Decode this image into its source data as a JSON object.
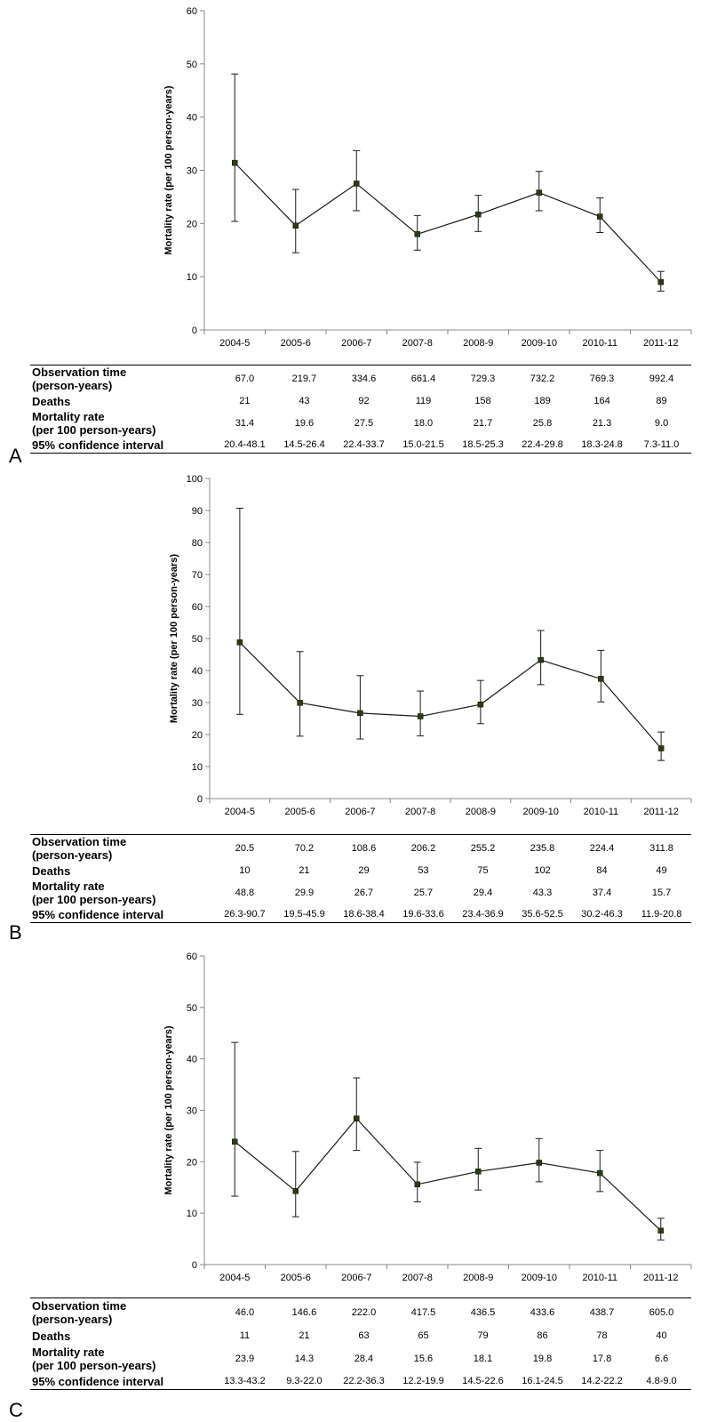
{
  "chart_data": [
    {
      "type": "line",
      "panel_letter": "A",
      "categories": [
        "2004-5",
        "2005-6",
        "2006-7",
        "2007-8",
        "2008-9",
        "2009-10",
        "2010-11",
        "2011-12"
      ],
      "series": [
        {
          "values": [
            31.4,
            19.6,
            27.5,
            18.0,
            21.7,
            25.8,
            21.3,
            9.0
          ],
          "ci_low": [
            20.4,
            14.5,
            22.4,
            15.0,
            18.5,
            22.4,
            18.3,
            7.3
          ],
          "ci_high": [
            48.1,
            26.4,
            33.7,
            21.5,
            25.3,
            29.8,
            24.8,
            11.0
          ]
        }
      ],
      "ylabel": "Mortality rate (per 100 person-years)",
      "ylim": [
        0,
        60
      ],
      "yticks": [
        0,
        10,
        20,
        30,
        40,
        50,
        60
      ],
      "grid": false,
      "table": {
        "rows": [
          {
            "label_lines": [
              "Observation time",
              "(person-years)"
            ],
            "values": [
              "67.0",
              "219.7",
              "334.6",
              "661.4",
              "729.3",
              "732.2",
              "769.3",
              "992.4"
            ]
          },
          {
            "label_lines": [
              "Deaths"
            ],
            "values": [
              "21",
              "43",
              "92",
              "119",
              "158",
              "189",
              "164",
              "89"
            ]
          },
          {
            "label_lines": [
              "Mortality rate",
              "(per 100 person-years)"
            ],
            "values": [
              "31.4",
              "19.6",
              "27.5",
              "18.0",
              "21.7",
              "25.8",
              "21.3",
              "9.0"
            ]
          },
          {
            "label_lines": [
              "95% confidence interval"
            ],
            "values": [
              "20.4-48.1",
              "14.5-26.4",
              "22.4-33.7",
              "15.0-21.5",
              "18.5-25.3",
              "22.4-29.8",
              "18.3-24.8",
              "7.3-11.0"
            ]
          }
        ]
      }
    },
    {
      "type": "line",
      "panel_letter": "B",
      "categories": [
        "2004-5",
        "2005-6",
        "2006-7",
        "2007-8",
        "2008-9",
        "2009-10",
        "2010-11",
        "2011-12"
      ],
      "series": [
        {
          "values": [
            48.8,
            29.9,
            26.7,
            25.7,
            29.4,
            43.3,
            37.4,
            15.7
          ],
          "ci_low": [
            26.3,
            19.5,
            18.6,
            19.6,
            23.4,
            35.6,
            30.2,
            11.9
          ],
          "ci_high": [
            90.7,
            45.9,
            38.4,
            33.6,
            36.9,
            52.5,
            46.3,
            20.8
          ]
        }
      ],
      "ylabel": "Mortality rate (per 100 person-years)",
      "ylim": [
        0,
        100
      ],
      "yticks": [
        0,
        10,
        20,
        30,
        40,
        50,
        60,
        70,
        80,
        90,
        100
      ],
      "grid": false,
      "table": {
        "rows": [
          {
            "label_lines": [
              "Observation time",
              "(person-years)"
            ],
            "values": [
              "20.5",
              "70.2",
              "108.6",
              "206.2",
              "255.2",
              "235.8",
              "224.4",
              "311.8"
            ]
          },
          {
            "label_lines": [
              "Deaths"
            ],
            "values": [
              "10",
              "21",
              "29",
              "53",
              "75",
              "102",
              "84",
              "49"
            ]
          },
          {
            "label_lines": [
              "Mortality rate",
              "(per 100 person-years)"
            ],
            "values": [
              "48.8",
              "29.9",
              "26.7",
              "25.7",
              "29.4",
              "43.3",
              "37.4",
              "15.7"
            ]
          },
          {
            "label_lines": [
              "95% confidence interval"
            ],
            "values": [
              "26.3-90.7",
              "19.5-45.9",
              "18.6-38.4",
              "19.6-33.6",
              "23.4-36.9",
              "35.6-52.5",
              "30.2-46.3",
              "11.9-20.8"
            ]
          }
        ]
      }
    },
    {
      "type": "line",
      "panel_letter": "C",
      "categories": [
        "2004-5",
        "2005-6",
        "2006-7",
        "2007-8",
        "2008-9",
        "2009-10",
        "2010-11",
        "2011-12"
      ],
      "series": [
        {
          "values": [
            23.9,
            14.3,
            28.4,
            15.6,
            18.1,
            19.8,
            17.8,
            6.6
          ],
          "ci_low": [
            13.3,
            9.3,
            22.2,
            12.2,
            14.5,
            16.1,
            14.2,
            4.8
          ],
          "ci_high": [
            43.2,
            22.0,
            36.3,
            19.9,
            22.6,
            24.5,
            22.2,
            9.0
          ]
        }
      ],
      "ylabel": "Mortality rate (per 100 person-years)",
      "ylim": [
        0,
        60
      ],
      "yticks": [
        0,
        10,
        20,
        30,
        40,
        50,
        60
      ],
      "grid": false,
      "table": {
        "rows": [
          {
            "label_lines": [
              "Observation time",
              "(person-years)"
            ],
            "values": [
              "46.0",
              "146.6",
              "222.0",
              "417.5",
              "436.5",
              "433.6",
              "438.7",
              "605.0"
            ]
          },
          {
            "label_lines": [
              "Deaths"
            ],
            "values": [
              "11",
              "21",
              "63",
              "65",
              "79",
              "86",
              "78",
              "40"
            ]
          },
          {
            "label_lines": [
              "Mortality rate",
              "(per 100 person-years)"
            ],
            "values": [
              "23.9",
              "14.3",
              "28.4",
              "15.6",
              "18.1",
              "19.8",
              "17.8",
              "6.6"
            ]
          },
          {
            "label_lines": [
              "95% confidence interval"
            ],
            "values": [
              "13.3-43.2",
              "9.3-22.0",
              "22.2-36.3",
              "12.2-19.9",
              "14.5-22.6",
              "16.1-24.5",
              "14.2-22.2",
              "4.8-9.0"
            ]
          }
        ]
      }
    }
  ]
}
